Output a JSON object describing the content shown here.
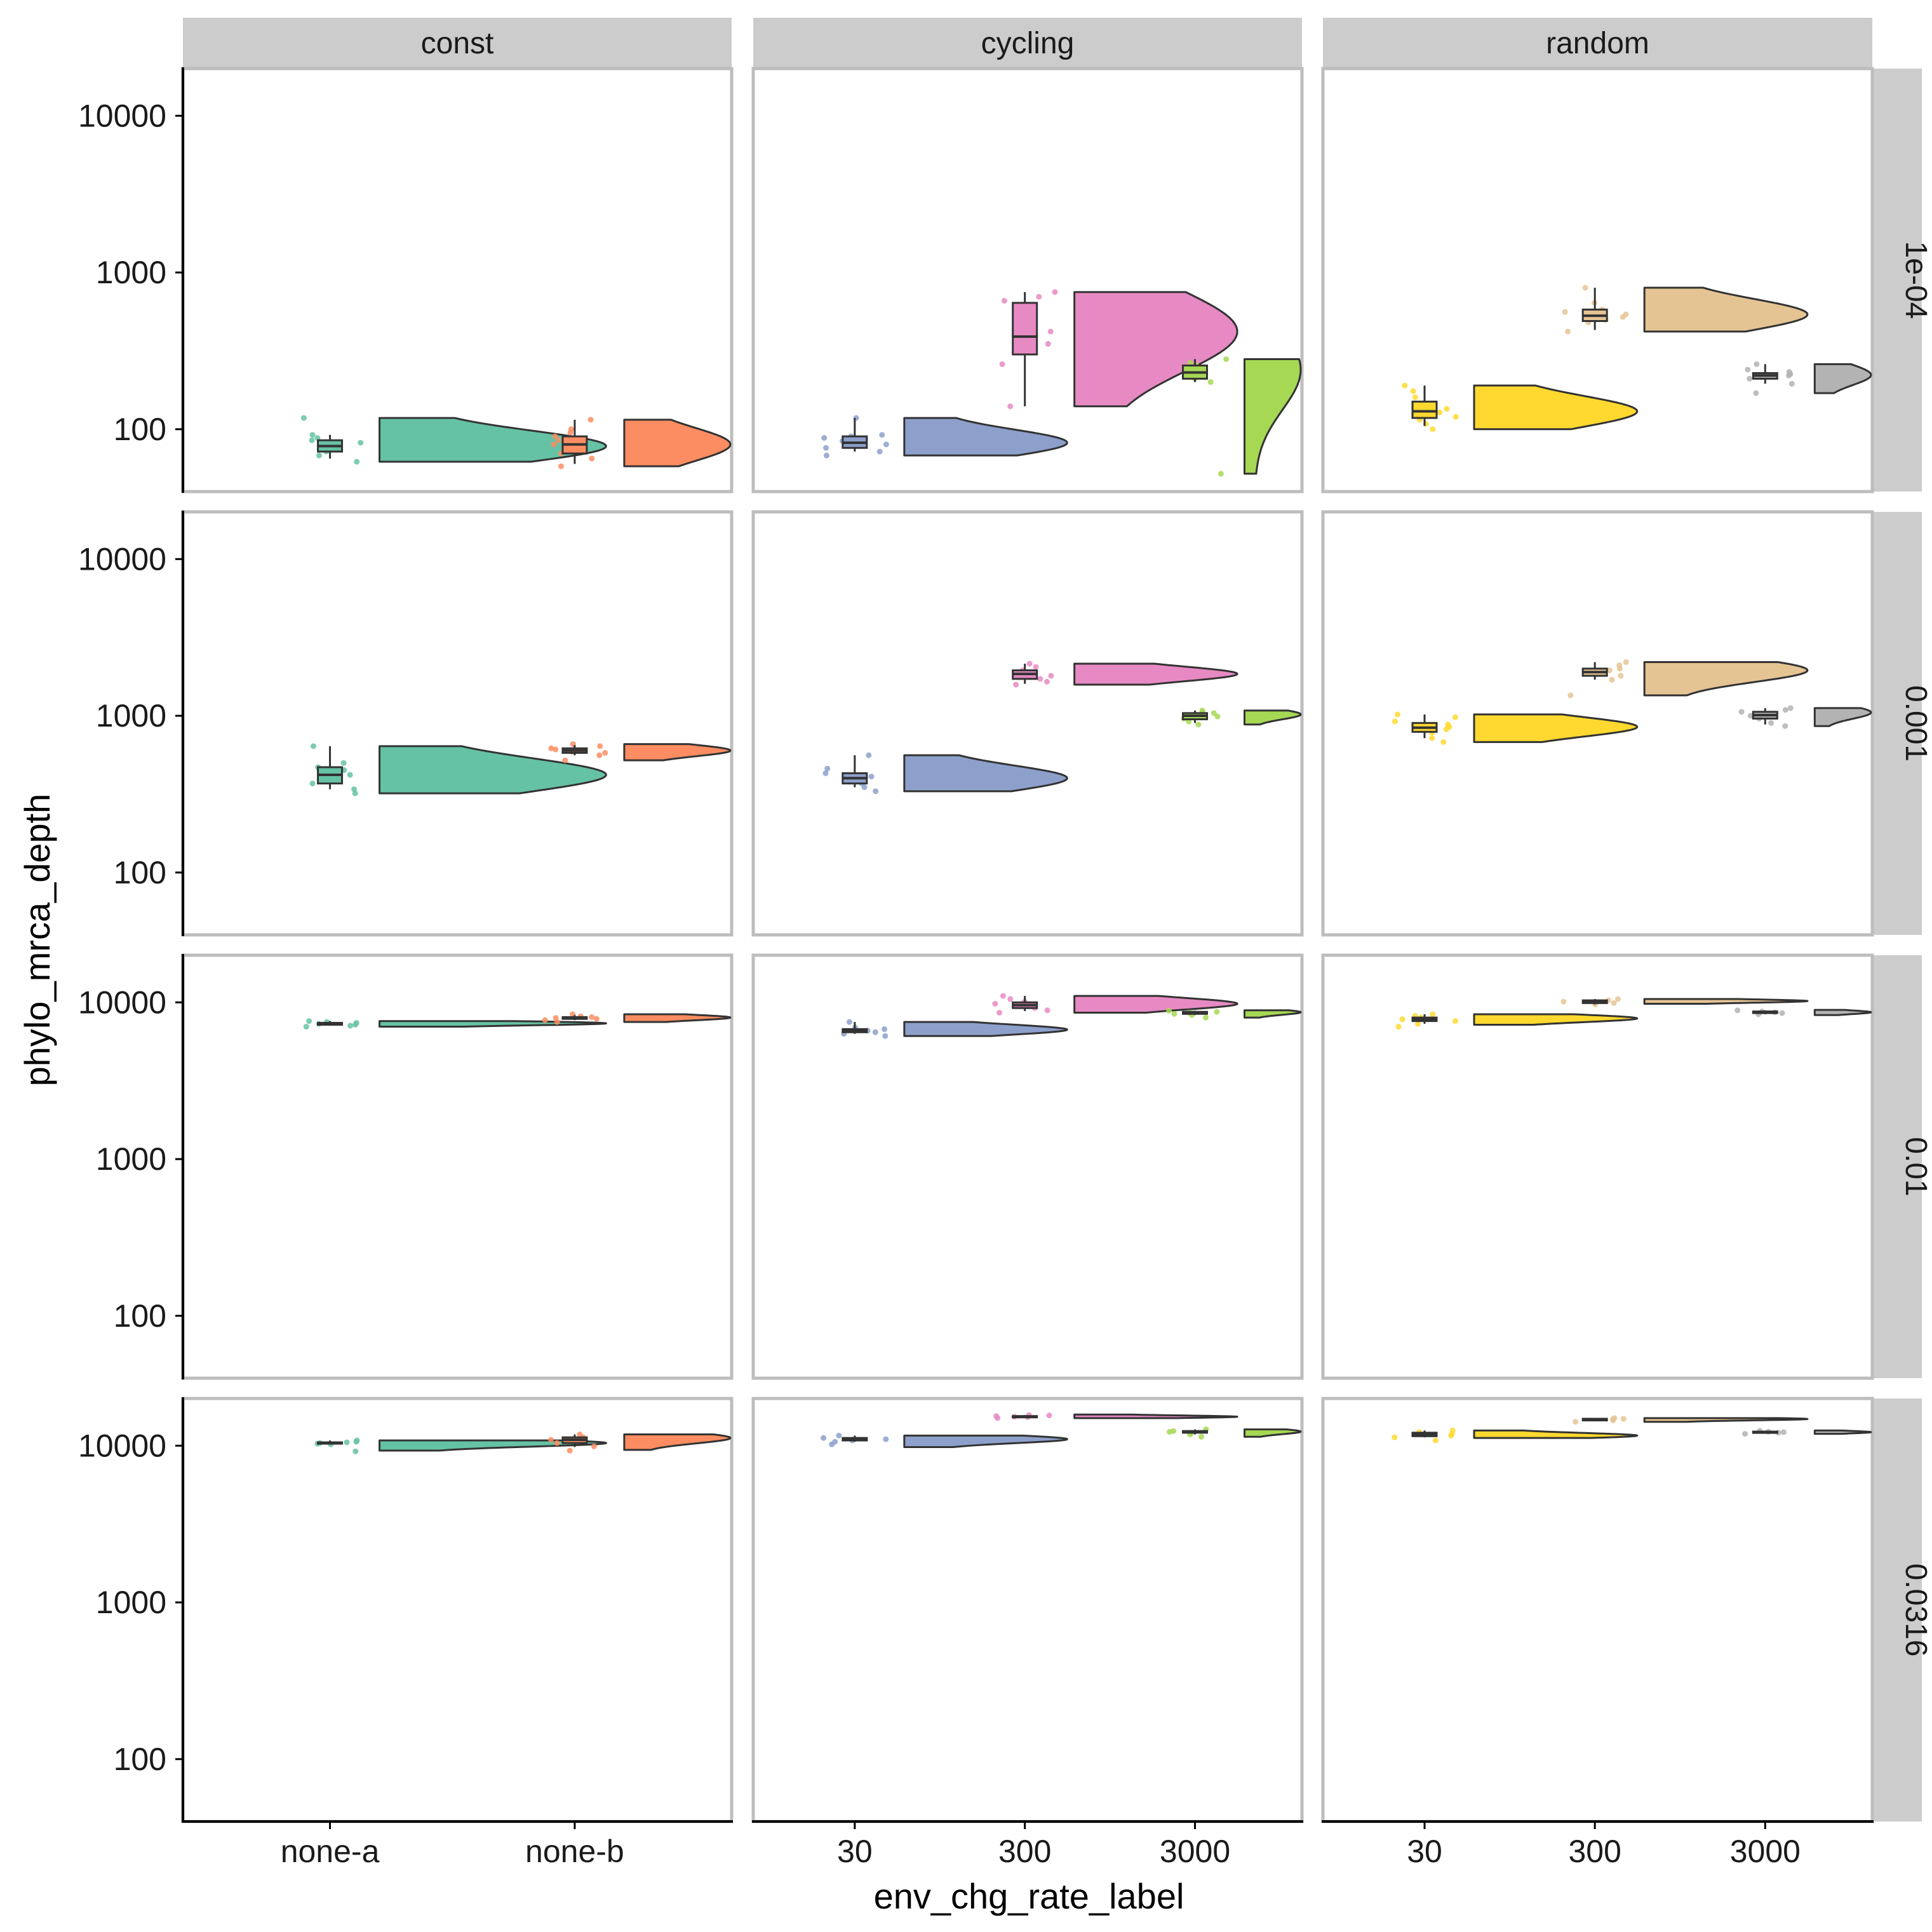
{
  "chart_data": {
    "type": "raincloud",
    "xlabel": "env_chg_rate_label",
    "ylabel": "phylo_mrca_depth",
    "y_scale": "log10",
    "ylim": [
      40,
      20000
    ],
    "y_ticks": [
      100,
      1000,
      10000
    ],
    "y_tick_labels": [
      "100",
      "1000",
      "10000"
    ],
    "grid": false,
    "legend": "none",
    "col_facets": [
      {
        "label": "const",
        "categories": [
          "none-a",
          "none-b"
        ]
      },
      {
        "label": "cycling",
        "categories": [
          "30",
          "300",
          "3000"
        ]
      },
      {
        "label": "random",
        "categories": [
          "30",
          "300",
          "3000"
        ]
      }
    ],
    "row_facets": [
      "1e-04",
      "0.001",
      "0.01",
      "0.0316"
    ],
    "colors": {
      "none-a": "#66c2a5",
      "none-b": "#fc8d62",
      "cycling-30": "#8da0cb",
      "cycling-300": "#e78ac3",
      "cycling-3000": "#a6d854",
      "random-30": "#ffd92f",
      "random-300": "#e5c494",
      "random-3000": "#b3b3b3"
    },
    "panels": [
      {
        "row": "1e-04",
        "col": "const",
        "groups": [
          {
            "category": "none-a",
            "min": 65,
            "q1": 72,
            "median": 78,
            "q3": 85,
            "max": 92,
            "violin_min": 62,
            "violin_max": 118,
            "mode": 78,
            "points": [
              62,
              68,
              72,
              75,
              78,
              82,
              85,
              88,
              92,
              118
            ]
          },
          {
            "category": "none-b",
            "min": 60,
            "q1": 70,
            "median": 80,
            "q3": 90,
            "max": 115,
            "violin_min": 58,
            "violin_max": 115,
            "mode": 80,
            "points": [
              58,
              65,
              70,
              75,
              80,
              85,
              90,
              95,
              100,
              115
            ]
          }
        ]
      },
      {
        "row": "1e-04",
        "col": "cycling",
        "groups": [
          {
            "category": "30",
            "min": 72,
            "q1": 76,
            "median": 82,
            "q3": 90,
            "max": 118,
            "violin_min": 68,
            "violin_max": 118,
            "mode": 82,
            "points": [
              68,
              72,
              76,
              80,
              84,
              88,
              90,
              92,
              118
            ]
          },
          {
            "category": "300",
            "min": 140,
            "q1": 300,
            "median": 390,
            "q3": 640,
            "max": 750,
            "violin_min": 140,
            "violin_max": 750,
            "mode": 420,
            "points": [
              140,
              260,
              350,
              420,
              610,
              660,
              700,
              750
            ]
          },
          {
            "category": "3000",
            "min": 200,
            "q1": 210,
            "median": 230,
            "q3": 255,
            "max": 280,
            "violin_min": 52,
            "violin_max": 280,
            "mode": 240,
            "points": [
              52,
              200,
              210,
              220,
              230,
              245,
              255,
              265,
              280
            ]
          }
        ]
      },
      {
        "row": "1e-04",
        "col": "random",
        "groups": [
          {
            "category": "30",
            "min": 105,
            "q1": 118,
            "median": 130,
            "q3": 150,
            "max": 190,
            "violin_min": 100,
            "violin_max": 190,
            "mode": 130,
            "points": [
              100,
              108,
              115,
              120,
              128,
              135,
              145,
              160,
              175,
              190
            ]
          },
          {
            "category": "300",
            "min": 430,
            "q1": 490,
            "median": 530,
            "q3": 580,
            "max": 800,
            "violin_min": 420,
            "violin_max": 800,
            "mode": 540,
            "points": [
              420,
              480,
              500,
              520,
              540,
              560,
              580,
              640,
              800
            ]
          },
          {
            "category": "3000",
            "min": 195,
            "q1": 210,
            "median": 220,
            "q3": 228,
            "max": 260,
            "violin_min": 170,
            "violin_max": 260,
            "mode": 222,
            "points": [
              170,
              195,
              210,
              215,
              220,
              225,
              232,
              240,
              260
            ]
          }
        ]
      },
      {
        "row": "0.001",
        "col": "const",
        "groups": [
          {
            "category": "none-a",
            "min": 340,
            "q1": 370,
            "median": 420,
            "q3": 470,
            "max": 640,
            "violin_min": 320,
            "violin_max": 640,
            "mode": 420,
            "points": [
              320,
              340,
              370,
              400,
              420,
              450,
              470,
              500,
              640
            ]
          },
          {
            "category": "none-b",
            "min": 560,
            "q1": 580,
            "median": 600,
            "q3": 620,
            "max": 650,
            "violin_min": 520,
            "violin_max": 660,
            "mode": 600,
            "points": [
              520,
              560,
              580,
              590,
              600,
              610,
              620,
              640,
              660
            ]
          }
        ]
      },
      {
        "row": "0.001",
        "col": "cycling",
        "groups": [
          {
            "category": "30",
            "min": 350,
            "q1": 370,
            "median": 400,
            "q3": 430,
            "max": 560,
            "violin_min": 330,
            "violin_max": 560,
            "mode": 400,
            "points": [
              330,
              350,
              370,
              390,
              410,
              430,
              460,
              560
            ]
          },
          {
            "category": "300",
            "min": 1600,
            "q1": 1720,
            "median": 1850,
            "q3": 1950,
            "max": 2150,
            "violin_min": 1580,
            "violin_max": 2150,
            "mode": 1850,
            "points": [
              1580,
              1650,
              1720,
              1800,
              1850,
              1900,
              1950,
              2050,
              2150
            ]
          },
          {
            "category": "3000",
            "min": 900,
            "q1": 950,
            "median": 1000,
            "q3": 1040,
            "max": 1080,
            "violin_min": 880,
            "violin_max": 1080,
            "mode": 1020,
            "points": [
              880,
              920,
              960,
              990,
              1010,
              1040,
              1060,
              1080
            ]
          }
        ]
      },
      {
        "row": "0.001",
        "col": "random",
        "groups": [
          {
            "category": "30",
            "min": 720,
            "q1": 790,
            "median": 840,
            "q3": 900,
            "max": 1020,
            "violin_min": 680,
            "violin_max": 1020,
            "mode": 850,
            "points": [
              680,
              720,
              780,
              820,
              850,
              880,
              920,
              980,
              1020
            ]
          },
          {
            "category": "300",
            "min": 1700,
            "q1": 1800,
            "median": 1900,
            "q3": 2000,
            "max": 2200,
            "violin_min": 1350,
            "violin_max": 2200,
            "mode": 1950,
            "points": [
              1350,
              1700,
              1800,
              1880,
              1950,
              2000,
              2100,
              2200
            ]
          },
          {
            "category": "3000",
            "min": 880,
            "q1": 960,
            "median": 1010,
            "q3": 1060,
            "max": 1120,
            "violin_min": 860,
            "violin_max": 1120,
            "mode": 1050,
            "points": [
              860,
              900,
              960,
              1000,
              1020,
              1060,
              1090,
              1120
            ]
          }
        ]
      },
      {
        "row": "0.01",
        "col": "const",
        "groups": [
          {
            "category": "none-a",
            "min": 7100,
            "q1": 7200,
            "median": 7300,
            "q3": 7400,
            "max": 7600,
            "violin_min": 7000,
            "violin_max": 7600,
            "mode": 7350,
            "points": [
              7000,
              7100,
              7200,
              7300,
              7400,
              7500,
              7600
            ]
          },
          {
            "category": "none-b",
            "min": 7700,
            "q1": 7850,
            "median": 7950,
            "q3": 8050,
            "max": 8300,
            "violin_min": 7500,
            "violin_max": 8400,
            "mode": 8000,
            "points": [
              7500,
              7700,
              7850,
              7950,
              8050,
              8150,
              8400
            ]
          }
        ]
      },
      {
        "row": "0.01",
        "col": "cycling",
        "groups": [
          {
            "category": "30",
            "min": 6300,
            "q1": 6450,
            "median": 6600,
            "q3": 6750,
            "max": 7500,
            "violin_min": 6100,
            "violin_max": 7500,
            "mode": 6700,
            "points": [
              6100,
              6300,
              6450,
              6600,
              6750,
              6900,
              7500
            ]
          },
          {
            "category": "300",
            "min": 8800,
            "q1": 9200,
            "median": 9600,
            "q3": 10000,
            "max": 11000,
            "violin_min": 8600,
            "violin_max": 11000,
            "mode": 9800,
            "points": [
              8600,
              8900,
              9200,
              9500,
              9800,
              10100,
              10500,
              11000
            ]
          },
          {
            "category": "3000",
            "min": 8300,
            "q1": 8450,
            "median": 8600,
            "q3": 8700,
            "max": 8850,
            "violin_min": 8000,
            "violin_max": 8900,
            "mode": 8650,
            "points": [
              8000,
              8300,
              8450,
              8600,
              8700,
              8850
            ]
          }
        ]
      },
      {
        "row": "0.01",
        "col": "random",
        "groups": [
          {
            "category": "30",
            "min": 7300,
            "q1": 7600,
            "median": 7800,
            "q3": 8000,
            "max": 8400,
            "violin_min": 7200,
            "violin_max": 8400,
            "mode": 7900,
            "points": [
              7000,
              7300,
              7600,
              7800,
              8000,
              8200,
              8400
            ]
          },
          {
            "category": "300",
            "min": 9700,
            "q1": 9900,
            "median": 10100,
            "q3": 10300,
            "max": 10500,
            "violin_min": 9800,
            "violin_max": 10500,
            "mode": 10200,
            "points": [
              9700,
              9900,
              10100,
              10300,
              10500
            ]
          },
          {
            "category": "3000",
            "min": 8400,
            "q1": 8550,
            "median": 8650,
            "q3": 8750,
            "max": 8900,
            "violin_min": 8300,
            "violin_max": 8950,
            "mode": 8650,
            "points": [
              8400,
              8550,
              8650,
              8750,
              8900
            ]
          }
        ]
      },
      {
        "row": "0.0316",
        "col": "const",
        "groups": [
          {
            "category": "none-a",
            "min": 10200,
            "q1": 10300,
            "median": 10400,
            "q3": 10500,
            "max": 10800,
            "violin_min": 9300,
            "violin_max": 10800,
            "mode": 10400,
            "points": [
              9200,
              10200,
              10300,
              10400,
              10500,
              10600,
              10800
            ]
          },
          {
            "category": "none-b",
            "min": 9800,
            "q1": 10400,
            "median": 10900,
            "q3": 11300,
            "max": 11800,
            "violin_min": 9400,
            "violin_max": 11800,
            "mode": 11200,
            "points": [
              9300,
              9900,
              10400,
              10900,
              11300,
              11800
            ]
          }
        ]
      },
      {
        "row": "0.0316",
        "col": "cycling",
        "groups": [
          {
            "category": "30",
            "min": 10600,
            "q1": 10800,
            "median": 11000,
            "q3": 11200,
            "max": 11600,
            "violin_min": 9800,
            "violin_max": 11600,
            "mode": 11000,
            "points": [
              10200,
              10600,
              10800,
              11000,
              11200,
              11600
            ]
          },
          {
            "category": "300",
            "min": 15000,
            "q1": 15200,
            "median": 15300,
            "q3": 15450,
            "max": 15700,
            "violin_min": 15000,
            "violin_max": 15800,
            "mode": 15300,
            "points": [
              15000,
              15200,
              15300,
              15450,
              15600,
              15700
            ]
          },
          {
            "category": "3000",
            "min": 11800,
            "q1": 12100,
            "median": 12250,
            "q3": 12400,
            "max": 12700,
            "violin_min": 11400,
            "violin_max": 12700,
            "mode": 12300,
            "points": [
              11400,
              11800,
              12100,
              12250,
              12400,
              12700
            ]
          }
        ]
      },
      {
        "row": "0.0316",
        "col": "random",
        "groups": [
          {
            "category": "30",
            "min": 11300,
            "q1": 11500,
            "median": 11800,
            "q3": 12100,
            "max": 12500,
            "violin_min": 11200,
            "violin_max": 12500,
            "mode": 11600,
            "points": [
              10800,
              11300,
              11600,
              11900,
              12200,
              12500
            ]
          },
          {
            "category": "300",
            "min": 14300,
            "q1": 14500,
            "median": 14700,
            "q3": 14850,
            "max": 15000,
            "violin_min": 14200,
            "violin_max": 15000,
            "mode": 14800,
            "points": [
              14200,
              14500,
              14700,
              14850,
              15000
            ]
          },
          {
            "category": "3000",
            "min": 12000,
            "q1": 12100,
            "median": 12200,
            "q3": 12300,
            "max": 12450,
            "violin_min": 11900,
            "violin_max": 12500,
            "mode": 12200,
            "points": [
              11900,
              12100,
              12200,
              12300,
              12450
            ]
          }
        ]
      }
    ]
  }
}
